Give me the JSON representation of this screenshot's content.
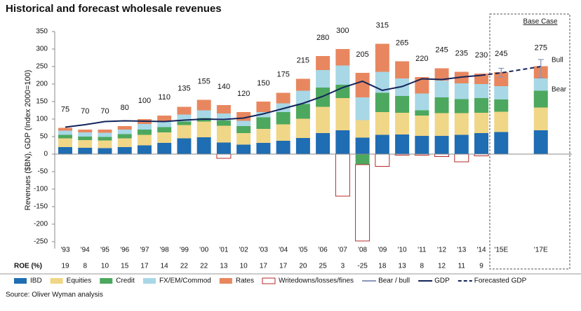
{
  "chart_data": {
    "type": "bar",
    "title": "Historical and forecast wholesale revenues",
    "y_label": "Revenues ($BN), GDP (Index 2000=100)",
    "categories": [
      "'93",
      "'94",
      "'95",
      "'96",
      "'97",
      "'98",
      "'99",
      "'00",
      "'01",
      "'02",
      "'03",
      "'04",
      "'05",
      "'06",
      "'07",
      "'08",
      "'09",
      "'10",
      "'11",
      "'12",
      "'13",
      "'14",
      "'15E",
      null,
      "'17E"
    ],
    "series": [
      {
        "name": "IBD",
        "color": "#1f6db3",
        "values": [
          20,
          18,
          17,
          20,
          25,
          32,
          45,
          48,
          33,
          27,
          32,
          38,
          46,
          60,
          68,
          47,
          55,
          56,
          52,
          52,
          55,
          60,
          63,
          null,
          68
        ]
      },
      {
        "name": "Equities",
        "color": "#f0d687",
        "values": [
          25,
          22,
          22,
          25,
          30,
          30,
          38,
          45,
          48,
          33,
          40,
          47,
          55,
          75,
          92,
          50,
          65,
          62,
          58,
          65,
          62,
          58,
          58,
          null,
          65
        ]
      },
      {
        "name": "Credit",
        "color": "#4ca85e",
        "values": [
          10,
          10,
          10,
          12,
          15,
          15,
          10,
          10,
          15,
          20,
          33,
          35,
          42,
          55,
          38,
          -30,
          55,
          48,
          15,
          45,
          40,
          42,
          35,
          null,
          48
        ]
      },
      {
        "name": "FX/EM/Commod",
        "color": "#a8d7e6",
        "values": [
          12,
          12,
          12,
          13,
          16,
          18,
          20,
          22,
          20,
          15,
          15,
          25,
          38,
          50,
          55,
          65,
          60,
          50,
          48,
          48,
          45,
          40,
          38,
          null,
          35
        ]
      },
      {
        "name": "Rates",
        "color": "#e8875f",
        "values": [
          8,
          8,
          9,
          10,
          14,
          15,
          22,
          30,
          24,
          25,
          30,
          30,
          34,
          40,
          47,
          70,
          80,
          49,
          47,
          35,
          33,
          30,
          40,
          null,
          35
        ]
      },
      {
        "name": "Writedowns/losses/fines",
        "color": "#b52a2a",
        "outline": true,
        "values": [
          null,
          null,
          null,
          null,
          null,
          null,
          null,
          null,
          -12,
          null,
          null,
          null,
          null,
          null,
          -120,
          -218,
          -35,
          -3,
          -3,
          -7,
          -22,
          -5,
          null,
          null,
          null
        ]
      }
    ],
    "lines": [
      {
        "name": "GDP",
        "color": "#14245a",
        "dashed": false,
        "values": [
          77,
          84,
          93,
          95,
          94,
          93,
          97,
          100,
          99,
          103,
          115,
          130,
          145,
          165,
          190,
          208,
          182,
          193,
          215,
          213,
          220,
          225,
          null,
          null,
          null
        ]
      },
      {
        "name": "Forecasted GDP",
        "color": "#14245a",
        "dashed": true,
        "values": [
          null,
          null,
          null,
          null,
          null,
          null,
          null,
          null,
          null,
          null,
          null,
          null,
          null,
          null,
          null,
          null,
          null,
          null,
          null,
          null,
          null,
          225,
          232,
          null,
          250
        ]
      }
    ],
    "range": {
      "name": "Bear / bull",
      "color": "#8a96b8",
      "low": [
        null,
        null,
        null,
        null,
        null,
        null,
        null,
        null,
        null,
        null,
        null,
        null,
        null,
        null,
        null,
        null,
        null,
        null,
        null,
        null,
        null,
        null,
        220,
        null,
        218
      ],
      "high": [
        null,
        null,
        null,
        null,
        null,
        null,
        null,
        null,
        null,
        null,
        null,
        null,
        null,
        null,
        null,
        null,
        null,
        null,
        null,
        null,
        null,
        null,
        245,
        null,
        270
      ]
    },
    "totals": [
      75,
      70,
      70,
      80,
      100,
      110,
      135,
      155,
      140,
      120,
      150,
      175,
      215,
      280,
      300,
      205,
      315,
      265,
      220,
      245,
      235,
      230,
      245,
      null,
      275
    ],
    "roe_label": "ROE (%)",
    "roe": [
      19,
      8,
      10,
      15,
      17,
      14,
      22,
      22,
      13,
      10,
      17,
      17,
      20,
      25,
      3,
      -25,
      18,
      13,
      8,
      12,
      11,
      9,
      null,
      null,
      null
    ],
    "ylim": [
      -270,
      350
    ],
    "yticks": [
      350,
      300,
      250,
      200,
      150,
      100,
      50,
      0,
      -50,
      -100,
      -150,
      -200,
      -250
    ],
    "base_case": "Base Case",
    "bull_label": "Bull",
    "bear_label": "Bear",
    "source": "Source: Oliver Wyman analysis"
  }
}
